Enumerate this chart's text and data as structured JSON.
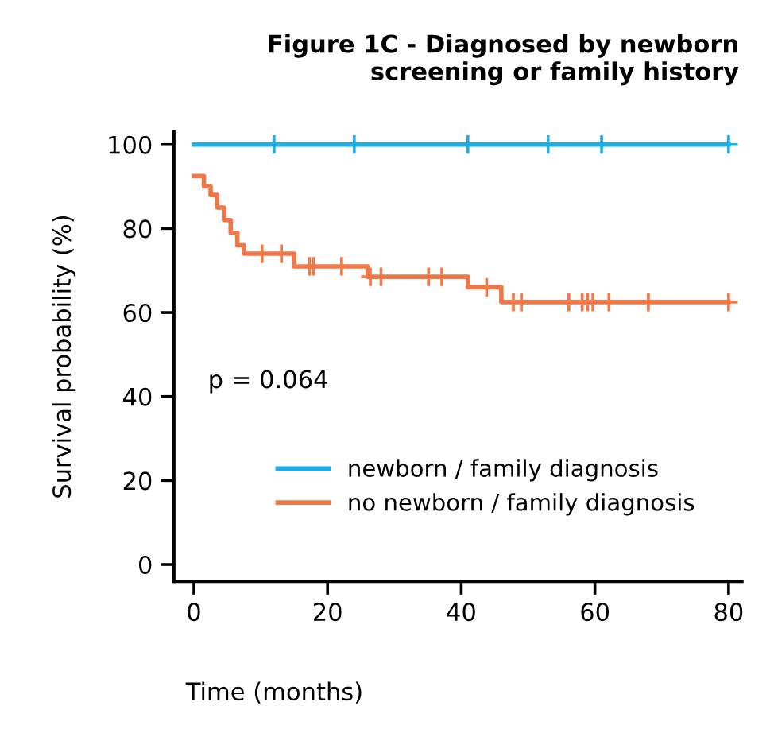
{
  "chart_data": {
    "type": "step",
    "title": "Figure 1C - Diagnosed by newborn\nscreening or family history",
    "xlabel": "Time (months)",
    "ylabel": "Survival probability (%)",
    "annotations": [
      "p = 0.064"
    ],
    "xlim": [
      -3,
      82
    ],
    "xticks": [
      0,
      20,
      40,
      60,
      80
    ],
    "ylim": [
      -4,
      103
    ],
    "yticks": [
      0,
      20,
      40,
      60,
      80,
      100
    ],
    "grid": false,
    "legend": "bottom",
    "line_style": "solid",
    "series": [
      {
        "name": "newborn / family diagnosis",
        "color": "#1eaee6",
        "x": [
          0,
          80
        ],
        "values": [
          100,
          100
        ]
      },
      {
        "name": "no newborn / family diagnosis",
        "color": "#f07848",
        "x": [
          0,
          1.5,
          2.5,
          3.5,
          4.5,
          5.5,
          6.5,
          7.5,
          15,
          26,
          41,
          46,
          80
        ],
        "values": [
          92.5,
          90,
          88,
          85,
          82,
          79,
          76,
          74,
          71,
          68.5,
          66,
          62.5,
          62.5
        ]
      },
      {
        "color": "#1eaee6",
        "type": "scatter",
        "marker": "cross",
        "x": [
          12,
          24,
          41,
          53,
          61,
          80
        ],
        "values": [
          100,
          100,
          100,
          100,
          100,
          100
        ]
      },
      {
        "color": "#f07848",
        "type": "scatter",
        "marker": "cross",
        "x": [
          10.2,
          13.1,
          17.3,
          17.9,
          22.1,
          26.4,
          28,
          35.1,
          37.1,
          43.8,
          47.8,
          49,
          56.1,
          58.1,
          58.9,
          59.7,
          62.1,
          68,
          80
        ],
        "values": [
          74,
          74,
          71,
          71,
          71,
          68.5,
          68.5,
          68.5,
          68.5,
          66,
          62.5,
          62.5,
          62.5,
          62.5,
          62.5,
          62.5,
          62.5,
          62.5,
          62.5
        ]
      }
    ]
  }
}
